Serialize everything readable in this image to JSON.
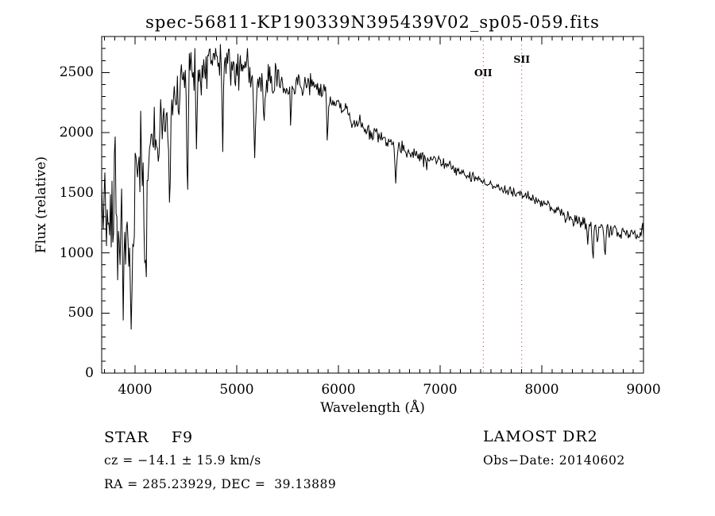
{
  "figure": {
    "title": "spec-56811-KP190339N395439V02_sp05-059.fits",
    "colors": {
      "background": "#ffffff",
      "spectrum": "#000000",
      "frame": "#000000",
      "marker_line": "#8f3a2a",
      "text": "#000000"
    }
  },
  "annotations": {
    "class_label": "STAR    F9",
    "survey": "LAMOST DR2",
    "cz": "cz = −14.1 ± 15.9 km/s",
    "obs_date": "Obs−Date: 20140602",
    "ra_dec": "RA = 285.23929, DEC =  39.13889"
  },
  "chart_data": {
    "type": "line",
    "title": "spec-56811-KP190339N395439V02_sp05-059.fits",
    "xlabel": "Wavelength (Å)",
    "ylabel": "Flux (relative)",
    "xlim": [
      3672,
      9000
    ],
    "ylim": [
      0,
      2800
    ],
    "x_ticks": [
      4000,
      5000,
      6000,
      7000,
      8000,
      9000
    ],
    "y_ticks": [
      0,
      500,
      1000,
      1500,
      2000,
      2500
    ],
    "x_minor_step": 100,
    "y_minor_step": 100,
    "grid": false,
    "series_name": "flux-spectrum",
    "continuum_points": [
      [
        3672,
        1250
      ],
      [
        3700,
        1300
      ],
      [
        3740,
        1280
      ],
      [
        3780,
        1400
      ],
      [
        3820,
        1350
      ],
      [
        3860,
        1100
      ],
      [
        3900,
        1200
      ],
      [
        3930,
        950
      ],
      [
        3965,
        750
      ],
      [
        4000,
        1550
      ],
      [
        4040,
        1720
      ],
      [
        4080,
        1600
      ],
      [
        4120,
        1500
      ],
      [
        4160,
        1850
      ],
      [
        4200,
        2000
      ],
      [
        4260,
        2100
      ],
      [
        4310,
        2050
      ],
      [
        4360,
        2200
      ],
      [
        4420,
        2300
      ],
      [
        4470,
        2430
      ],
      [
        4520,
        2520
      ],
      [
        4570,
        2570
      ],
      [
        4620,
        2540
      ],
      [
        4680,
        2520
      ],
      [
        4740,
        2600
      ],
      [
        4800,
        2640
      ],
      [
        4860,
        2620
      ],
      [
        4920,
        2570
      ],
      [
        4980,
        2510
      ],
      [
        5040,
        2560
      ],
      [
        5100,
        2550
      ],
      [
        5160,
        2440
      ],
      [
        5220,
        2430
      ],
      [
        5280,
        2390
      ],
      [
        5340,
        2420
      ],
      [
        5400,
        2450
      ],
      [
        5460,
        2400
      ],
      [
        5520,
        2380
      ],
      [
        5580,
        2410
      ],
      [
        5640,
        2400
      ],
      [
        5700,
        2410
      ],
      [
        5760,
        2400
      ],
      [
        5820,
        2350
      ],
      [
        5880,
        2290
      ],
      [
        5940,
        2250
      ],
      [
        6000,
        2230
      ],
      [
        6060,
        2180
      ],
      [
        6120,
        2130
      ],
      [
        6180,
        2090
      ],
      [
        6240,
        2040
      ],
      [
        6300,
        2000
      ],
      [
        6360,
        1980
      ],
      [
        6420,
        1960
      ],
      [
        6480,
        1940
      ],
      [
        6540,
        1920
      ],
      [
        6600,
        1880
      ],
      [
        6660,
        1850
      ],
      [
        6720,
        1820
      ],
      [
        6780,
        1800
      ],
      [
        6840,
        1780
      ],
      [
        6900,
        1775
      ],
      [
        6960,
        1765
      ],
      [
        7020,
        1750
      ],
      [
        7080,
        1720
      ],
      [
        7140,
        1690
      ],
      [
        7200,
        1670
      ],
      [
        7260,
        1650
      ],
      [
        7320,
        1625
      ],
      [
        7380,
        1605
      ],
      [
        7440,
        1590
      ],
      [
        7500,
        1570
      ],
      [
        7560,
        1550
      ],
      [
        7620,
        1530
      ],
      [
        7680,
        1515
      ],
      [
        7740,
        1500
      ],
      [
        7800,
        1490
      ],
      [
        7860,
        1465
      ],
      [
        7920,
        1445
      ],
      [
        7980,
        1425
      ],
      [
        8040,
        1405
      ],
      [
        8100,
        1380
      ],
      [
        8160,
        1350
      ],
      [
        8220,
        1320
      ],
      [
        8280,
        1280
      ],
      [
        8340,
        1260
      ],
      [
        8400,
        1240
      ],
      [
        8460,
        1225
      ],
      [
        8520,
        1215
      ],
      [
        8580,
        1205
      ],
      [
        8640,
        1200
      ],
      [
        8700,
        1195
      ],
      [
        8760,
        1180
      ],
      [
        8820,
        1170
      ],
      [
        8880,
        1165
      ],
      [
        8940,
        1150
      ],
      [
        9000,
        1140
      ]
    ],
    "noise_sigma": [
      [
        3672,
        300
      ],
      [
        3750,
        280
      ],
      [
        3850,
        230
      ],
      [
        3950,
        260
      ],
      [
        4050,
        200
      ],
      [
        4150,
        150
      ],
      [
        4250,
        130
      ],
      [
        4350,
        120
      ],
      [
        4450,
        110
      ],
      [
        4550,
        100
      ],
      [
        4700,
        90
      ],
      [
        4900,
        85
      ],
      [
        5100,
        80
      ],
      [
        5300,
        65
      ],
      [
        5500,
        55
      ],
      [
        5700,
        50
      ],
      [
        5900,
        45
      ],
      [
        6100,
        40
      ],
      [
        6300,
        35
      ],
      [
        6500,
        30
      ],
      [
        6700,
        28
      ],
      [
        6900,
        25
      ],
      [
        7100,
        22
      ],
      [
        7300,
        20
      ],
      [
        7500,
        18
      ],
      [
        7700,
        18
      ],
      [
        7900,
        20
      ],
      [
        8100,
        22
      ],
      [
        8300,
        24
      ],
      [
        8500,
        26
      ],
      [
        8700,
        28
      ],
      [
        9000,
        30
      ]
    ],
    "absorption_lines": [
      {
        "wavelength": 3835,
        "min_flux": 850,
        "width": 8
      },
      {
        "wavelength": 3890,
        "min_flux": 800,
        "width": 8
      },
      {
        "wavelength": 3922,
        "min_flux": 790,
        "width": 7
      },
      {
        "wavelength": 3962,
        "min_flux": 445,
        "width": 9
      },
      {
        "wavelength": 4101,
        "min_flux": 600,
        "width": 8
      },
      {
        "wavelength": 4227,
        "min_flux": 1750,
        "width": 6
      },
      {
        "wavelength": 4340,
        "min_flux": 1500,
        "width": 8
      },
      {
        "wavelength": 4515,
        "min_flux": 1560,
        "width": 6
      },
      {
        "wavelength": 4605,
        "min_flux": 1810,
        "width": 6
      },
      {
        "wavelength": 4861,
        "min_flux": 1840,
        "width": 7
      },
      {
        "wavelength": 5175,
        "min_flux": 1940,
        "width": 8
      },
      {
        "wavelength": 5270,
        "min_flux": 2080,
        "width": 7
      },
      {
        "wavelength": 5530,
        "min_flux": 2095,
        "width": 6
      },
      {
        "wavelength": 5893,
        "min_flux": 1975,
        "width": 7
      },
      {
        "wavelength": 6563,
        "min_flux": 1545,
        "width": 7
      },
      {
        "wavelength": 6870,
        "min_flux": 1700,
        "width": 6
      },
      {
        "wavelength": 7620,
        "min_flux": 1480,
        "width": 6
      },
      {
        "wavelength": 8232,
        "min_flux": 1260,
        "width": 6
      },
      {
        "wavelength": 8450,
        "min_flux": 1100,
        "width": 7
      },
      {
        "wavelength": 8502,
        "min_flux": 965,
        "width": 8
      },
      {
        "wavelength": 8545,
        "min_flux": 1090,
        "width": 7
      },
      {
        "wavelength": 8622,
        "min_flux": 1000,
        "width": 8
      },
      {
        "wavelength": 8688,
        "min_flux": 1150,
        "width": 6
      }
    ],
    "emission_spikes": [
      {
        "wavelength": 3805,
        "peak_flux": 1930,
        "width": 5
      },
      {
        "wavelength": 4047,
        "peak_flux": 1850,
        "width": 5
      },
      {
        "wavelength": 8990,
        "peak_flux": 1280,
        "width": 4
      }
    ],
    "marker_lines": [
      {
        "label": "OII",
        "wavelength": 7424
      },
      {
        "label": "SII",
        "wavelength": 7802
      }
    ]
  }
}
